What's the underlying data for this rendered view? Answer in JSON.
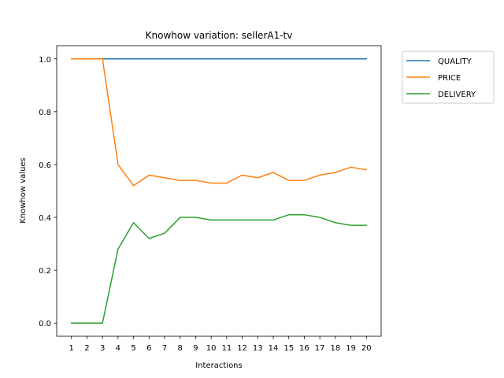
{
  "chart_data": {
    "type": "line",
    "title": "Knowhow variation: sellerA1-tv",
    "xlabel": "Interactions",
    "ylabel": "Knowhow values",
    "x": [
      1,
      2,
      3,
      4,
      5,
      6,
      7,
      8,
      9,
      10,
      11,
      12,
      13,
      14,
      15,
      16,
      17,
      18,
      19,
      20
    ],
    "xlim": [
      0.05,
      20.95
    ],
    "ylim": [
      -0.05,
      1.05
    ],
    "yticks": [
      0.0,
      0.2,
      0.4,
      0.6,
      0.8,
      1.0
    ],
    "ytick_labels": [
      "0.0",
      "0.2",
      "0.4",
      "0.6",
      "0.8",
      "1.0"
    ],
    "grid": false,
    "legend_position": "outside-top-right",
    "series": [
      {
        "name": "QUALITY",
        "color": "#1f77b4",
        "values": [
          1.0,
          1.0,
          1.0,
          1.0,
          1.0,
          1.0,
          1.0,
          1.0,
          1.0,
          1.0,
          1.0,
          1.0,
          1.0,
          1.0,
          1.0,
          1.0,
          1.0,
          1.0,
          1.0,
          1.0
        ]
      },
      {
        "name": "PRICE",
        "color": "#ff7f0e",
        "values": [
          1.0,
          1.0,
          1.0,
          0.6,
          0.52,
          0.56,
          0.55,
          0.54,
          0.54,
          0.53,
          0.53,
          0.56,
          0.55,
          0.57,
          0.54,
          0.54,
          0.56,
          0.57,
          0.59,
          0.58
        ]
      },
      {
        "name": "DELIVERY",
        "color": "#2ca02c",
        "values": [
          0.0,
          0.0,
          0.0,
          0.28,
          0.38,
          0.32,
          0.34,
          0.4,
          0.4,
          0.39,
          0.39,
          0.39,
          0.39,
          0.39,
          0.41,
          0.41,
          0.4,
          0.38,
          0.37,
          0.37
        ]
      }
    ]
  }
}
